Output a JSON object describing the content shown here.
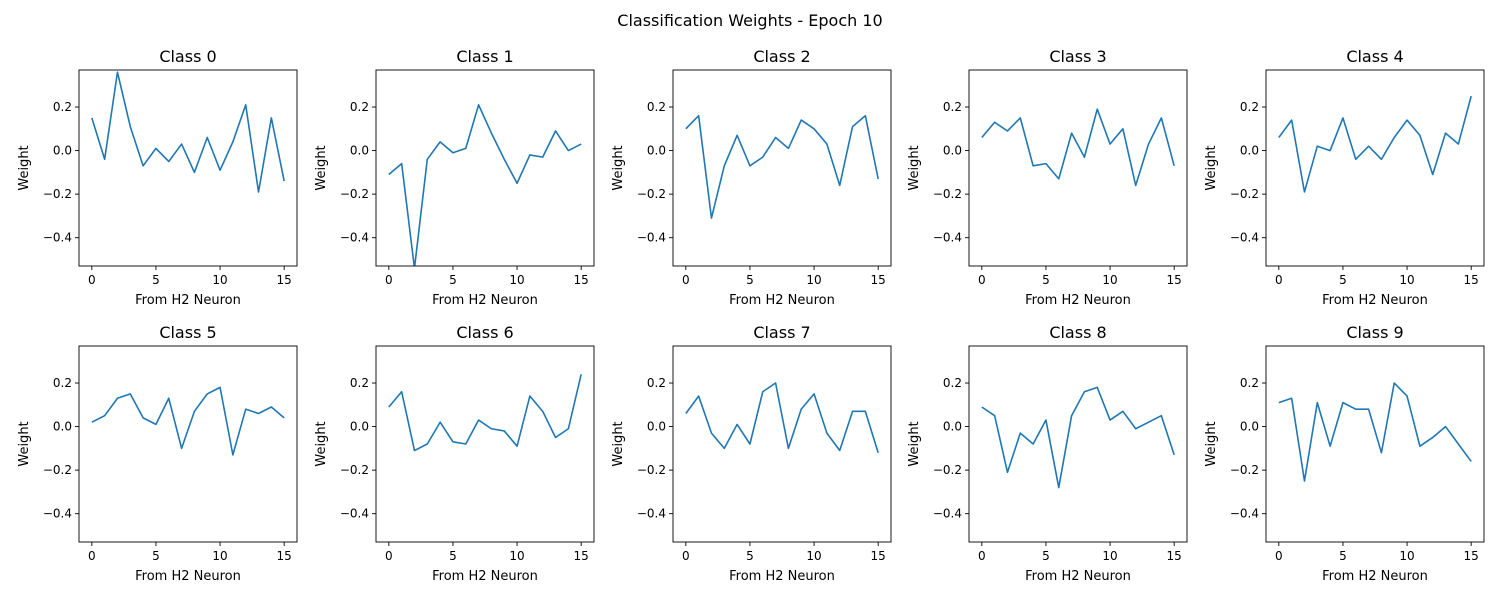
{
  "chart_data": {
    "type": "line",
    "title": "Classification Weights - Epoch 10",
    "series_color": "#1f77b4",
    "xlim": [
      -1,
      16
    ],
    "ylim": [
      -0.53,
      0.37
    ],
    "xticks": [
      0,
      5,
      10,
      15
    ],
    "yticks": [
      0.2,
      0.0,
      -0.2,
      -0.4
    ],
    "ytick_labels": [
      "0.2",
      "0.0",
      "−0.2",
      "−0.4"
    ],
    "grid": false,
    "panels": [
      {
        "title": "Class 0",
        "xlabel": "From H2 Neuron",
        "ylabel": "Weight",
        "x": [
          0,
          1,
          2,
          3,
          4,
          5,
          6,
          7,
          8,
          9,
          10,
          11,
          12,
          13,
          14,
          15
        ],
        "values": [
          0.15,
          -0.04,
          0.36,
          0.11,
          -0.07,
          0.01,
          -0.05,
          0.03,
          -0.1,
          0.06,
          -0.09,
          0.04,
          0.21,
          -0.19,
          0.15,
          -0.14
        ]
      },
      {
        "title": "Class 1",
        "xlabel": "From H2 Neuron",
        "ylabel": "Weight",
        "x": [
          0,
          1,
          2,
          3,
          4,
          5,
          6,
          7,
          8,
          9,
          10,
          11,
          12,
          13,
          14,
          15
        ],
        "values": [
          -0.11,
          -0.06,
          -0.54,
          -0.04,
          0.04,
          -0.01,
          0.01,
          0.21,
          0.08,
          -0.04,
          -0.15,
          -0.02,
          -0.03,
          0.09,
          0.0,
          0.03
        ]
      },
      {
        "title": "Class 2",
        "xlabel": "From H2 Neuron",
        "ylabel": "Weight",
        "x": [
          0,
          1,
          2,
          3,
          4,
          5,
          6,
          7,
          8,
          9,
          10,
          11,
          12,
          13,
          14,
          15
        ],
        "values": [
          0.1,
          0.16,
          -0.31,
          -0.07,
          0.07,
          -0.07,
          -0.03,
          0.06,
          0.01,
          0.14,
          0.1,
          0.03,
          -0.16,
          0.11,
          0.16,
          -0.13
        ]
      },
      {
        "title": "Class 3",
        "xlabel": "From H2 Neuron",
        "ylabel": "Weight",
        "x": [
          0,
          1,
          2,
          3,
          4,
          5,
          6,
          7,
          8,
          9,
          10,
          11,
          12,
          13,
          14,
          15
        ],
        "values": [
          0.06,
          0.13,
          0.09,
          0.15,
          -0.07,
          -0.06,
          -0.13,
          0.08,
          -0.03,
          0.19,
          0.03,
          0.1,
          -0.16,
          0.03,
          0.15,
          -0.07
        ]
      },
      {
        "title": "Class 4",
        "xlabel": "From H2 Neuron",
        "ylabel": "Weight",
        "x": [
          0,
          1,
          2,
          3,
          4,
          5,
          6,
          7,
          8,
          9,
          10,
          11,
          12,
          13,
          14,
          15
        ],
        "values": [
          0.06,
          0.14,
          -0.19,
          0.02,
          0.0,
          0.15,
          -0.04,
          0.02,
          -0.04,
          0.06,
          0.14,
          0.07,
          -0.11,
          0.08,
          0.03,
          0.25
        ]
      },
      {
        "title": "Class 5",
        "xlabel": "From H2 Neuron",
        "ylabel": "Weight",
        "x": [
          0,
          1,
          2,
          3,
          4,
          5,
          6,
          7,
          8,
          9,
          10,
          11,
          12,
          13,
          14,
          15
        ],
        "values": [
          0.02,
          0.05,
          0.13,
          0.15,
          0.04,
          0.01,
          0.13,
          -0.1,
          0.07,
          0.15,
          0.18,
          -0.13,
          0.08,
          0.06,
          0.09,
          0.04
        ]
      },
      {
        "title": "Class 6",
        "xlabel": "From H2 Neuron",
        "ylabel": "Weight",
        "x": [
          0,
          1,
          2,
          3,
          4,
          5,
          6,
          7,
          8,
          9,
          10,
          11,
          12,
          13,
          14,
          15
        ],
        "values": [
          0.09,
          0.16,
          -0.11,
          -0.08,
          0.02,
          -0.07,
          -0.08,
          0.03,
          -0.01,
          -0.02,
          -0.09,
          0.14,
          0.07,
          -0.05,
          -0.01,
          0.24
        ]
      },
      {
        "title": "Class 7",
        "xlabel": "From H2 Neuron",
        "ylabel": "Weight",
        "x": [
          0,
          1,
          2,
          3,
          4,
          5,
          6,
          7,
          8,
          9,
          10,
          11,
          12,
          13,
          14,
          15
        ],
        "values": [
          0.06,
          0.14,
          -0.03,
          -0.1,
          0.01,
          -0.08,
          0.16,
          0.2,
          -0.1,
          0.08,
          0.15,
          -0.03,
          -0.11,
          0.07,
          0.07,
          -0.12
        ]
      },
      {
        "title": "Class 8",
        "xlabel": "From H2 Neuron",
        "ylabel": "Weight",
        "x": [
          0,
          1,
          2,
          3,
          4,
          5,
          6,
          7,
          8,
          9,
          10,
          11,
          12,
          13,
          14,
          15
        ],
        "values": [
          0.09,
          0.05,
          -0.21,
          -0.03,
          -0.08,
          0.03,
          -0.28,
          0.05,
          0.16,
          0.18,
          0.03,
          0.07,
          -0.01,
          0.02,
          0.05,
          -0.13
        ]
      },
      {
        "title": "Class 9",
        "xlabel": "From H2 Neuron",
        "ylabel": "Weight",
        "x": [
          0,
          1,
          2,
          3,
          4,
          5,
          6,
          7,
          8,
          9,
          10,
          11,
          12,
          13,
          14,
          15
        ],
        "values": [
          0.11,
          0.13,
          -0.25,
          0.11,
          -0.09,
          0.11,
          0.08,
          0.08,
          -0.12,
          0.2,
          0.14,
          -0.09,
          -0.05,
          0.0,
          -0.08,
          -0.16
        ]
      }
    ]
  }
}
